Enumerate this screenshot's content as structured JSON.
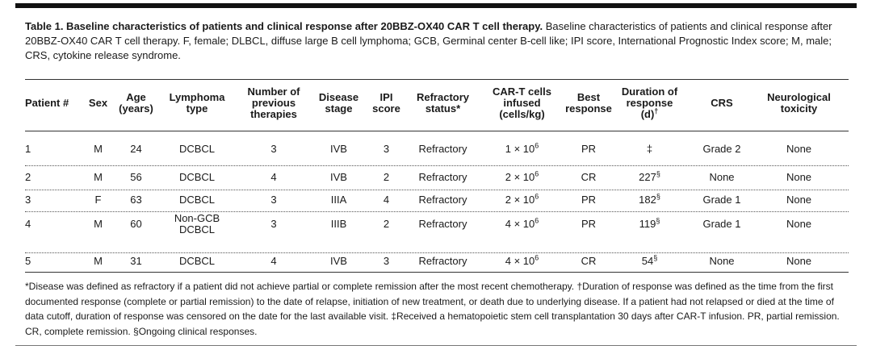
{
  "caption": {
    "title": "Table 1. Baseline characteristics of patients and clinical response after 20BBZ-OX40 CAR T cell therapy.",
    "body": "Baseline characteristics of patients and clinical response after 20BBZ-OX40 CAR T cell therapy. F, female; DLBCL, diffuse large B cell lymphoma; GCB, Germinal center B-cell like; IPI score, International Prognostic Index score; M, male; CRS, cytokine release syndrome."
  },
  "columns": [
    {
      "l1": "Patient #",
      "l2": "",
      "l3": "",
      "sup": ""
    },
    {
      "l1": "Sex",
      "l2": "",
      "l3": "",
      "sup": ""
    },
    {
      "l1": "Age",
      "l2": "(years)",
      "l3": "",
      "sup": ""
    },
    {
      "l1": "Lymphoma",
      "l2": "type",
      "l3": "",
      "sup": ""
    },
    {
      "l1": "Number of",
      "l2": "previous",
      "l3": "therapies",
      "sup": ""
    },
    {
      "l1": "Disease",
      "l2": "stage",
      "l3": "",
      "sup": ""
    },
    {
      "l1": "IPI",
      "l2": "score",
      "l3": "",
      "sup": ""
    },
    {
      "l1": "Refractory",
      "l2": "status*",
      "l3": "",
      "sup": ""
    },
    {
      "l1": "CAR-T cells",
      "l2": "infused",
      "l3": "(cells/kg)",
      "sup": ""
    },
    {
      "l1": "Best",
      "l2": "response",
      "l3": "",
      "sup": ""
    },
    {
      "l1": "Duration of",
      "l2": "response",
      "l3": "(d)",
      "sup": "†"
    },
    {
      "l1": "CRS",
      "l2": "",
      "l3": "",
      "sup": ""
    },
    {
      "l1": "Neurological",
      "l2": "toxicity",
      "l3": "",
      "sup": ""
    }
  ],
  "rows": [
    {
      "patient": "1",
      "sex": "M",
      "age": "24",
      "type1": "DCBCL",
      "type2": "",
      "prev": "3",
      "stage": "IVB",
      "ipi": "3",
      "refractory": "Refractory",
      "cells_coef": "1 × 10",
      "cells_exp": "6",
      "best": "PR",
      "duration": "‡",
      "duration_sup": "",
      "crs": "Grade 2",
      "neuro": "None"
    },
    {
      "patient": "2",
      "sex": "M",
      "age": "56",
      "type1": "DCBCL",
      "type2": "",
      "prev": "4",
      "stage": "IVB",
      "ipi": "2",
      "refractory": "Refractory",
      "cells_coef": "2 × 10",
      "cells_exp": "6",
      "best": "CR",
      "duration": "227",
      "duration_sup": "§",
      "crs": "None",
      "neuro": "None"
    },
    {
      "patient": "3",
      "sex": "F",
      "age": "63",
      "type1": "DCBCL",
      "type2": "",
      "prev": "3",
      "stage": "IIIA",
      "ipi": "4",
      "refractory": "Refractory",
      "cells_coef": "2 × 10",
      "cells_exp": "6",
      "best": "PR",
      "duration": "182",
      "duration_sup": "§",
      "crs": "Grade 1",
      "neuro": "None"
    },
    {
      "patient": "4",
      "sex": "M",
      "age": "60",
      "type1": "Non-GCB",
      "type2": "DCBCL",
      "prev": "3",
      "stage": "IIIB",
      "ipi": "2",
      "refractory": "Refractory",
      "cells_coef": "4 × 10",
      "cells_exp": "6",
      "best": "PR",
      "duration": "119",
      "duration_sup": "§",
      "crs": "Grade 1",
      "neuro": "None"
    },
    {
      "patient": "5",
      "sex": "M",
      "age": "31",
      "type1": "DCBCL",
      "type2": "",
      "prev": "4",
      "stage": "IVB",
      "ipi": "3",
      "refractory": "Refractory",
      "cells_coef": "4 × 10",
      "cells_exp": "6",
      "best": "CR",
      "duration": "54",
      "duration_sup": "§",
      "crs": "None",
      "neuro": "None"
    }
  ],
  "footnote": "*Disease was defined as refractory if a patient did not achieve partial or complete remission after the most recent chemotherapy.      †Duration of response was defined as the time from the first documented response (complete or partial remission) to the date of relapse, initiation of new treatment, or death due to underlying disease. If a patient had not relapsed or died at the time of data cutoff, duration of response was censored on the date for the last available visit.      ‡Received a hematopoietic stem cell transplantation 30 days after CAR-T infusion. PR, partial remission. CR, complete remission.      §Ongoing clinical responses."
}
